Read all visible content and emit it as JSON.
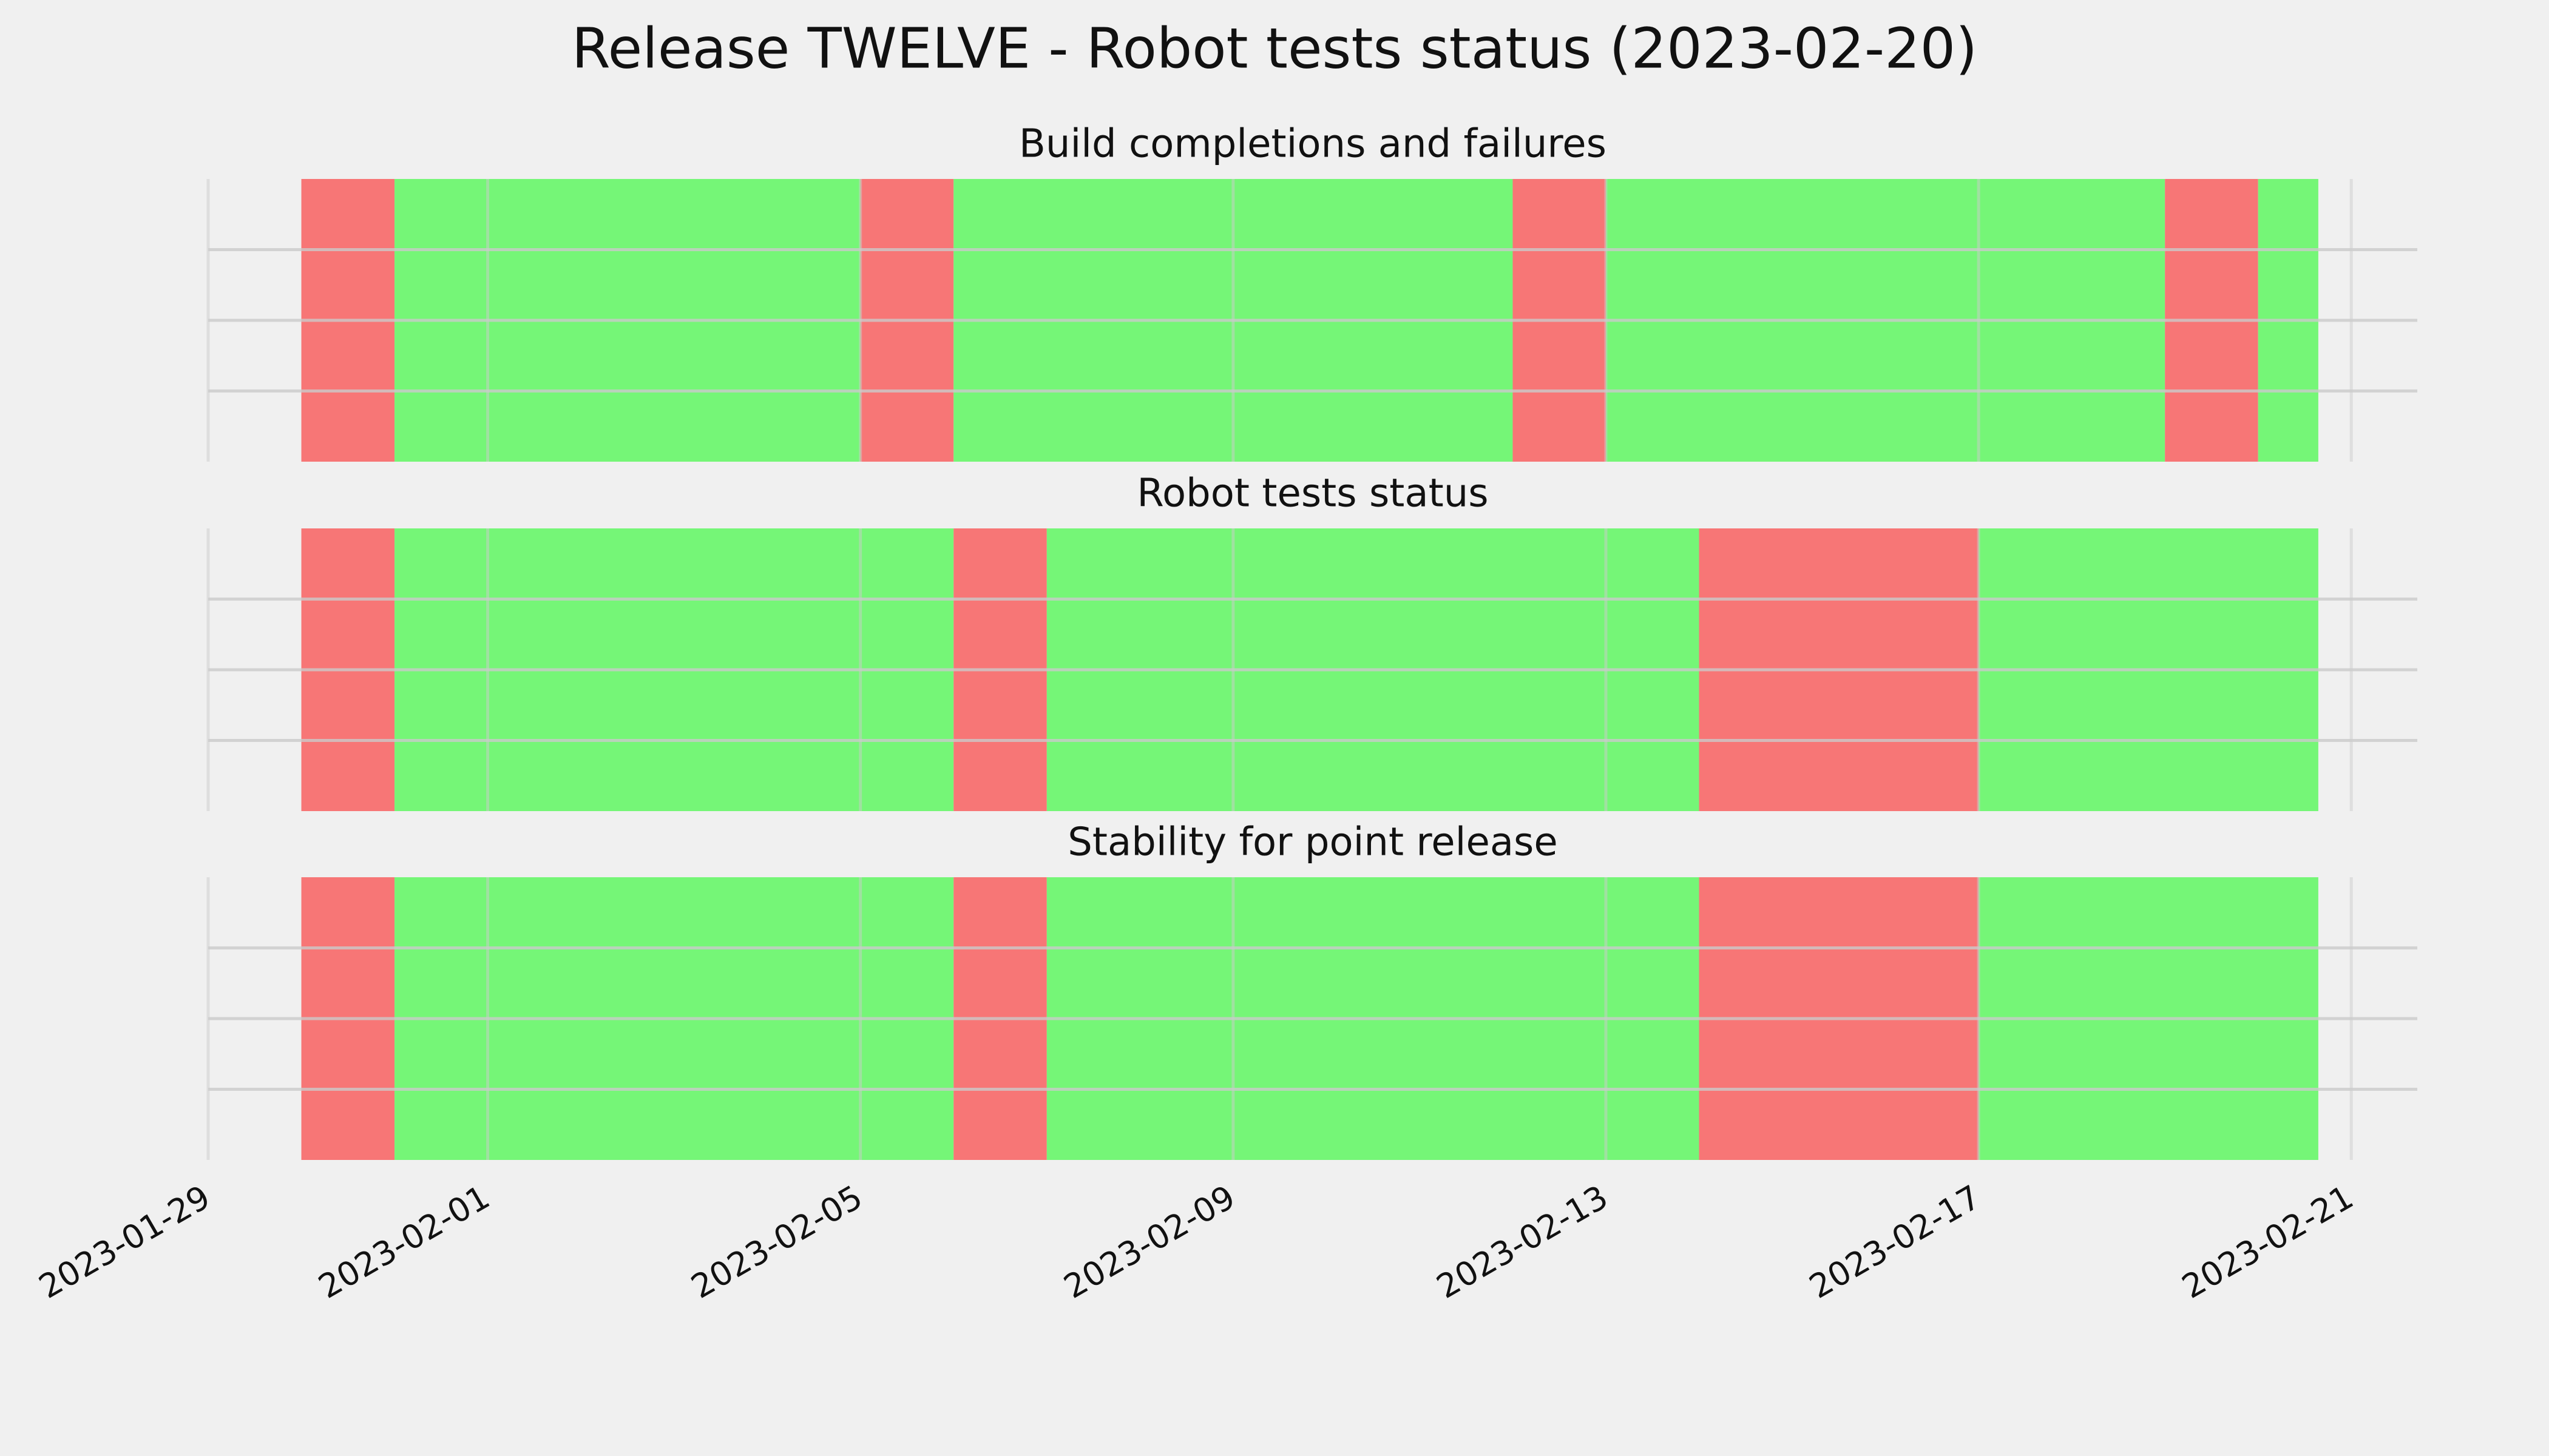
{
  "title": "Release TWELVE - Robot tests status (2023-02-20)",
  "chart_data": [
    {
      "type": "span",
      "title": "Build completions and failures",
      "xlim": [
        "2023-01-29",
        "2023-02-21T17:00"
      ],
      "ylim": [
        0,
        1
      ],
      "yticks": [
        0.25,
        0.5,
        0.75
      ],
      "grid": true,
      "xticks": [
        "2023-01-29",
        "2023-02-01",
        "2023-02-05",
        "2023-02-09",
        "2023-02-13",
        "2023-02-17",
        "2023-02-21"
      ],
      "spans": [
        {
          "start": "2023-01-30",
          "end": "2023-01-31",
          "color": "#f77676"
        },
        {
          "start": "2023-01-31",
          "end": "2023-02-05",
          "color": "#75f677"
        },
        {
          "start": "2023-02-05",
          "end": "2023-02-06",
          "color": "#f77676"
        },
        {
          "start": "2023-02-06",
          "end": "2023-02-12",
          "color": "#75f677"
        },
        {
          "start": "2023-02-12",
          "end": "2023-02-13",
          "color": "#f77676"
        },
        {
          "start": "2023-02-13",
          "end": "2023-02-19",
          "color": "#75f677"
        },
        {
          "start": "2023-02-19",
          "end": "2023-02-20",
          "color": "#f77676"
        },
        {
          "start": "2023-02-20",
          "end": "2023-02-20T15:30",
          "color": "#75f677"
        }
      ]
    },
    {
      "type": "span",
      "title": "Robot tests status",
      "xlim": [
        "2023-01-29",
        "2023-02-21T17:00"
      ],
      "ylim": [
        0,
        1
      ],
      "yticks": [
        0.25,
        0.5,
        0.75
      ],
      "grid": true,
      "xticks": [
        "2023-01-29",
        "2023-02-01",
        "2023-02-05",
        "2023-02-09",
        "2023-02-13",
        "2023-02-17",
        "2023-02-21"
      ],
      "spans": [
        {
          "start": "2023-01-30",
          "end": "2023-01-31",
          "color": "#f77676"
        },
        {
          "start": "2023-01-31",
          "end": "2023-02-06",
          "color": "#75f677"
        },
        {
          "start": "2023-02-06",
          "end": "2023-02-07",
          "color": "#f77676"
        },
        {
          "start": "2023-02-07",
          "end": "2023-02-14",
          "color": "#75f677"
        },
        {
          "start": "2023-02-14",
          "end": "2023-02-17",
          "color": "#f77676"
        },
        {
          "start": "2023-02-17",
          "end": "2023-02-20T15:30",
          "color": "#75f677"
        }
      ]
    },
    {
      "type": "span",
      "title": "Stability for point release",
      "xlim": [
        "2023-01-29",
        "2023-02-21T17:00"
      ],
      "ylim": [
        0,
        1
      ],
      "yticks": [
        0.25,
        0.5,
        0.75
      ],
      "grid": true,
      "xticks": [
        "2023-01-29",
        "2023-02-01",
        "2023-02-05",
        "2023-02-09",
        "2023-02-13",
        "2023-02-17",
        "2023-02-21"
      ],
      "spans": [
        {
          "start": "2023-01-30",
          "end": "2023-01-31",
          "color": "#f77676"
        },
        {
          "start": "2023-01-31",
          "end": "2023-02-06",
          "color": "#75f677"
        },
        {
          "start": "2023-02-06",
          "end": "2023-02-07",
          "color": "#f77676"
        },
        {
          "start": "2023-02-07",
          "end": "2023-02-14",
          "color": "#75f677"
        },
        {
          "start": "2023-02-14",
          "end": "2023-02-17",
          "color": "#f77676"
        },
        {
          "start": "2023-02-17",
          "end": "2023-02-20T15:30",
          "color": "#75f677"
        }
      ]
    }
  ]
}
